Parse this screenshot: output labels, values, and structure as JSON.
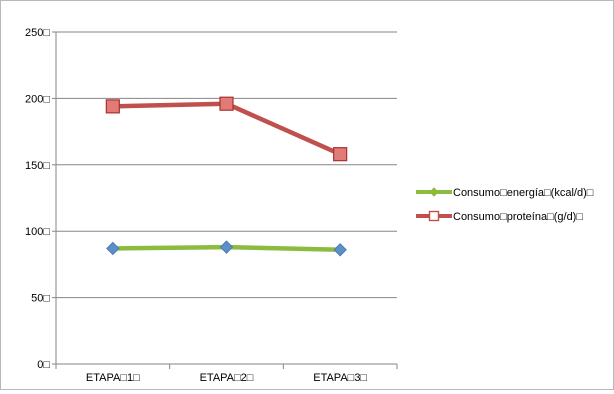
{
  "chart_data": {
    "type": "line",
    "categories": [
      "ETAPA□1□",
      "ETAPA□2□",
      "ETAPA□3□"
    ],
    "series": [
      {
        "name": "Consumo□energía□(kcal/d)□",
        "values": [
          87,
          88,
          86
        ],
        "color": "#8dbb3e",
        "marker": "diamond",
        "marker_color": "#5d8fc9"
      },
      {
        "name": "Consumo□proteína□(g/d)□",
        "values": [
          194,
          196,
          158
        ],
        "color": "#c0504d",
        "marker": "square"
      }
    ],
    "y_ticks": [
      "0□",
      "50□",
      "100□",
      "150□",
      "200□",
      "250□"
    ],
    "ylim": [
      0,
      250
    ],
    "grid": true,
    "legend_position": "right",
    "title": "",
    "xlabel": "",
    "ylabel": ""
  }
}
